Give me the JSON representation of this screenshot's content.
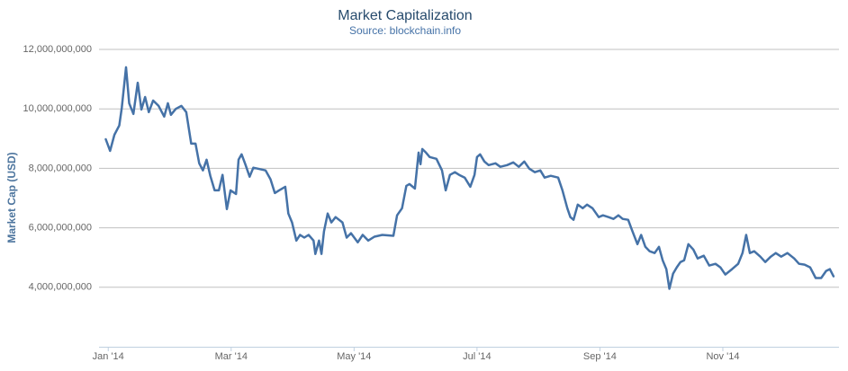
{
  "chart_data": {
    "type": "line",
    "title": "Market Capitalization",
    "subtitle": "Source: blockchain.info",
    "y_label": "Market Cap (USD)",
    "color": "#4572a7",
    "grid": true,
    "xlim": [
      0.85,
      12.89
    ],
    "xticks": [
      {
        "value": 1,
        "label": "Jan '14"
      },
      {
        "value": 3,
        "label": "Mar '14"
      },
      {
        "value": 5,
        "label": "May '14"
      },
      {
        "value": 7,
        "label": "Jul '14"
      },
      {
        "value": 9,
        "label": "Sep '14"
      },
      {
        "value": 11,
        "label": "Nov '14"
      }
    ],
    "ylim": [
      2000000000,
      12000000000
    ],
    "yticks": [
      {
        "value": 4000000000,
        "label": "4,000,000,000"
      },
      {
        "value": 6000000000,
        "label": "6,000,000,000"
      },
      {
        "value": 8000000000,
        "label": "8,000,000,000"
      },
      {
        "value": 10000000000,
        "label": "10,000,000,000"
      },
      {
        "value": 12000000000,
        "label": "12,000,000,000"
      }
    ],
    "x": [
      0.96,
      1.03,
      1.1,
      1.18,
      1.22,
      1.29,
      1.34,
      1.41,
      1.48,
      1.54,
      1.6,
      1.66,
      1.73,
      1.82,
      1.91,
      1.97,
      2.02,
      2.1,
      2.19,
      2.27,
      2.35,
      2.42,
      2.48,
      2.54,
      2.6,
      2.66,
      2.73,
      2.8,
      2.86,
      2.93,
      2.99,
      3.08,
      3.12,
      3.17,
      3.23,
      3.3,
      3.36,
      3.43,
      3.56,
      3.64,
      3.71,
      3.78,
      3.88,
      3.93,
      3.99,
      4.06,
      4.12,
      4.19,
      4.26,
      4.34,
      4.37,
      4.43,
      4.47,
      4.51,
      4.57,
      4.63,
      4.7,
      4.81,
      4.88,
      4.95,
      5.06,
      5.14,
      5.23,
      5.33,
      5.46,
      5.64,
      5.7,
      5.78,
      5.85,
      5.9,
      5.99,
      6.05,
      6.08,
      6.11,
      6.17,
      6.23,
      6.34,
      6.43,
      6.49,
      6.56,
      6.64,
      6.71,
      6.8,
      6.89,
      6.96,
      7.0,
      7.05,
      7.12,
      7.19,
      7.3,
      7.38,
      7.49,
      7.59,
      7.68,
      7.77,
      7.85,
      7.94,
      8.03,
      8.1,
      8.2,
      8.32,
      8.39,
      8.47,
      8.52,
      8.57,
      8.64,
      8.72,
      8.79,
      8.88,
      8.98,
      9.05,
      9.14,
      9.22,
      9.3,
      9.37,
      9.46,
      9.53,
      9.61,
      9.67,
      9.74,
      9.81,
      9.89,
      9.96,
      10.02,
      10.08,
      10.13,
      10.19,
      10.25,
      10.31,
      10.37,
      10.44,
      10.52,
      10.59,
      10.69,
      10.78,
      10.88,
      10.96,
      11.04,
      11.15,
      11.25,
      11.32,
      11.38,
      11.44,
      11.51,
      11.61,
      11.69,
      11.78,
      11.86,
      11.95,
      12.05,
      12.16,
      12.24,
      12.33,
      12.42,
      12.51,
      12.6,
      12.68,
      12.74,
      12.8
    ],
    "values": [
      8980000000,
      8590000000,
      9130000000,
      9440000000,
      10040000000,
      11400000000,
      10190000000,
      9830000000,
      10880000000,
      9980000000,
      10400000000,
      9890000000,
      10280000000,
      10100000000,
      9740000000,
      10190000000,
      9800000000,
      10000000000,
      10100000000,
      9890000000,
      8830000000,
      8830000000,
      8170000000,
      7930000000,
      8290000000,
      7750000000,
      7260000000,
      7260000000,
      7780000000,
      6630000000,
      7260000000,
      7140000000,
      8290000000,
      8470000000,
      8140000000,
      7720000000,
      8020000000,
      7990000000,
      7930000000,
      7630000000,
      7170000000,
      7260000000,
      7380000000,
      6480000000,
      6180000000,
      5570000000,
      5760000000,
      5670000000,
      5760000000,
      5570000000,
      5120000000,
      5570000000,
      5120000000,
      5880000000,
      6480000000,
      6180000000,
      6360000000,
      6180000000,
      5670000000,
      5820000000,
      5510000000,
      5760000000,
      5570000000,
      5700000000,
      5760000000,
      5730000000,
      6420000000,
      6660000000,
      7410000000,
      7470000000,
      7320000000,
      8530000000,
      8140000000,
      8650000000,
      8530000000,
      8380000000,
      8320000000,
      7930000000,
      7260000000,
      7780000000,
      7870000000,
      7780000000,
      7690000000,
      7380000000,
      7780000000,
      8380000000,
      8470000000,
      8230000000,
      8110000000,
      8170000000,
      8050000000,
      8110000000,
      8200000000,
      8050000000,
      8230000000,
      7990000000,
      7870000000,
      7930000000,
      7690000000,
      7750000000,
      7690000000,
      7260000000,
      6660000000,
      6360000000,
      6270000000,
      6780000000,
      6660000000,
      6780000000,
      6660000000,
      6360000000,
      6420000000,
      6360000000,
      6300000000,
      6420000000,
      6300000000,
      6270000000,
      5880000000,
      5450000000,
      5760000000,
      5360000000,
      5210000000,
      5150000000,
      5360000000,
      4910000000,
      4610000000,
      3950000000,
      4460000000,
      4670000000,
      4850000000,
      4910000000,
      5450000000,
      5270000000,
      4970000000,
      5060000000,
      4730000000,
      4790000000,
      4670000000,
      4430000000,
      4610000000,
      4790000000,
      5150000000,
      5760000000,
      5150000000,
      5210000000,
      5030000000,
      4850000000,
      5030000000,
      5150000000,
      5030000000,
      5150000000,
      4970000000,
      4790000000,
      4760000000,
      4670000000,
      4310000000,
      4310000000,
      4550000000,
      4610000000,
      4370000000
    ]
  }
}
